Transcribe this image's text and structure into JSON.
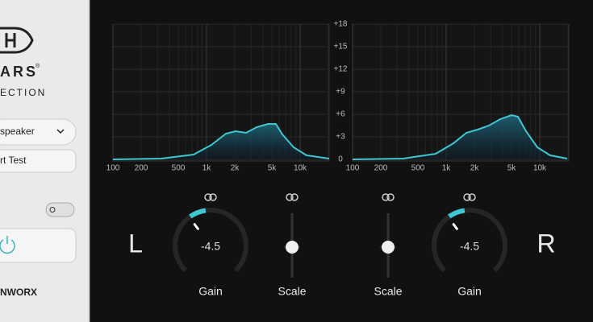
{
  "sidebar": {
    "brand": "ARS",
    "brand_mark": "®",
    "subtitle": "ECTION",
    "output_select": "speaker",
    "test_button": "rt Test",
    "footer": "NWORX"
  },
  "meter": {
    "db_labels": [
      "+18",
      "+15",
      "+12",
      "+9",
      "+6",
      "+3",
      "0"
    ],
    "freq_labels": [
      "100",
      "200",
      "500",
      "1k",
      "2k",
      "5k",
      "10k"
    ]
  },
  "channels": [
    {
      "label": "L",
      "knob_value": "-4.5",
      "knob_label": "Gain",
      "slider_label": "Scale"
    },
    {
      "label": "R",
      "knob_value": "-4.5",
      "knob_label": "Gain",
      "slider_label": "Scale"
    }
  ]
}
